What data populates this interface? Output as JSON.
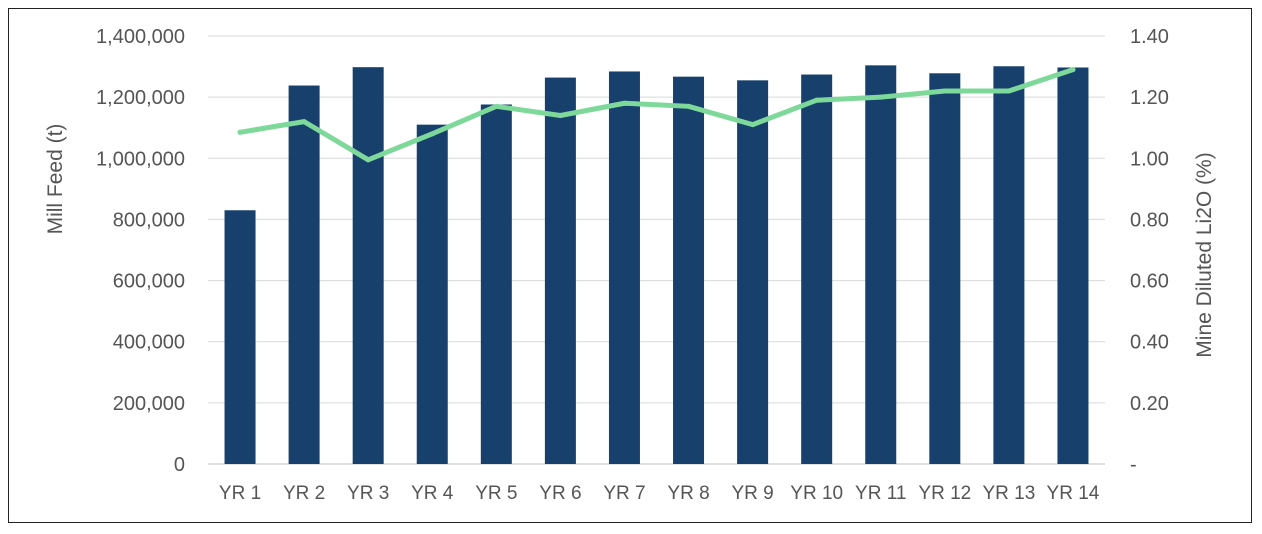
{
  "chart_data": {
    "type": "bar",
    "categories": [
      "YR 1",
      "YR 2",
      "YR 3",
      "YR 4",
      "YR 5",
      "YR 6",
      "YR 7",
      "YR 8",
      "YR 9",
      "YR 10",
      "YR 11",
      "YR 12",
      "YR 13",
      "YR 14"
    ],
    "series": [
      {
        "type": "bar",
        "axis": "left",
        "color": "#17406D",
        "values": [
          830000,
          1238000,
          1298000,
          1110000,
          1176000,
          1264000,
          1284000,
          1267000,
          1255000,
          1274000,
          1304000,
          1278000,
          1301000,
          1297000
        ]
      },
      {
        "type": "line",
        "axis": "right",
        "color": "#7DD89A",
        "values": [
          1.085,
          1.12,
          0.995,
          1.08,
          1.17,
          1.14,
          1.18,
          1.17,
          1.11,
          1.19,
          1.2,
          1.22,
          1.22,
          1.29
        ]
      }
    ],
    "ylabel": "Mill Feed (t)",
    "y2label": "Mine Diluted Li2O (%)",
    "ylim": [
      0,
      1400000
    ],
    "y2lim": [
      0,
      1.4
    ],
    "yticks": [
      "0",
      "200,000",
      "400,000",
      "600,000",
      "800,000",
      "1,000,000",
      "1,200,000",
      "1,400,000"
    ],
    "y2ticks": [
      "-",
      "0.20",
      "0.40",
      "0.60",
      "0.80",
      "1.00",
      "1.20",
      "1.40"
    ],
    "grid": true,
    "legend": "none"
  }
}
